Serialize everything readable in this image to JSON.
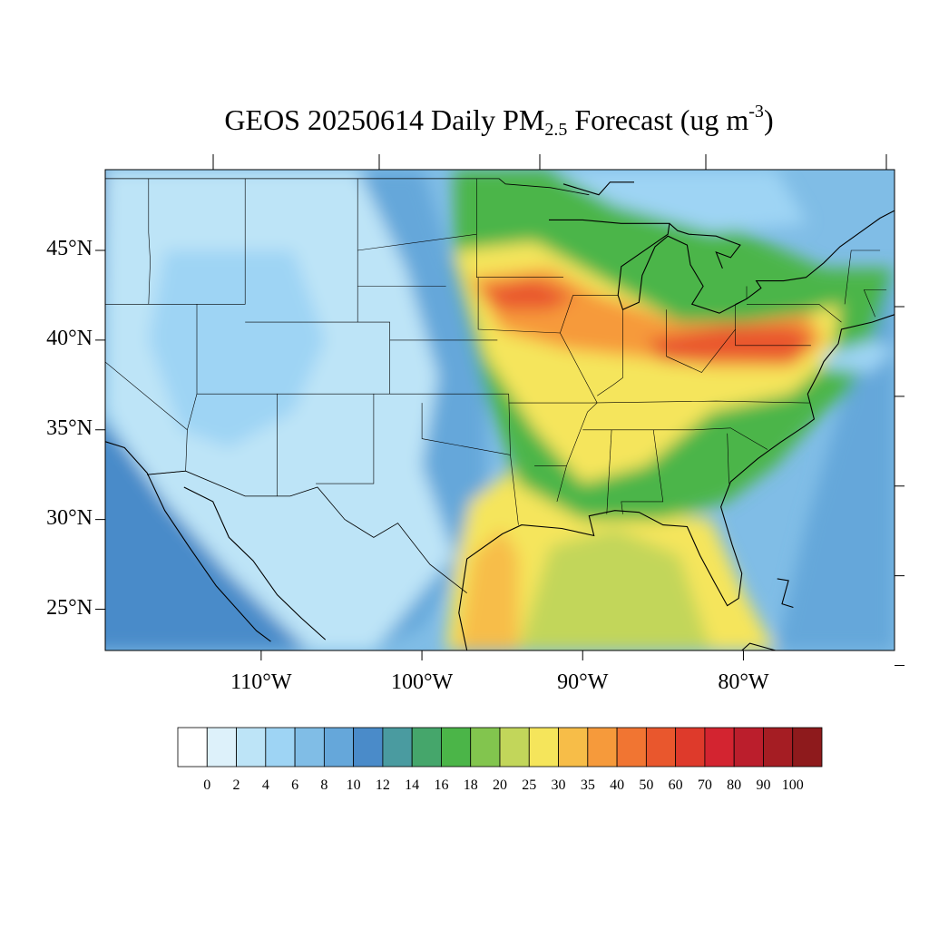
{
  "title": {
    "prefix": "GEOS 20250614 Daily PM",
    "subscript": "2.5",
    "middle": " Forecast (ug m",
    "superscript": "-3",
    "suffix": ")"
  },
  "map": {
    "lat_labels": [
      {
        "text": "45°N",
        "lat": 45
      },
      {
        "text": "40°N",
        "lat": 40
      },
      {
        "text": "35°N",
        "lat": 35
      },
      {
        "text": "30°N",
        "lat": 30
      },
      {
        "text": "25°N",
        "lat": 25
      }
    ],
    "lon_labels": [
      {
        "text": "110°W",
        "lon": -110
      },
      {
        "text": "100°W",
        "lon": -100
      },
      {
        "text": "90°W",
        "lon": -90
      },
      {
        "text": "80°W",
        "lon": -80
      }
    ],
    "extent": {
      "lon_min": -119.7,
      "lon_max": -70.6,
      "lat_min": 22.7,
      "lat_max": 49.5
    }
  },
  "colorbar": {
    "labels": [
      "0",
      "2",
      "4",
      "6",
      "8",
      "10",
      "12",
      "14",
      "16",
      "18",
      "20",
      "25",
      "30",
      "35",
      "40",
      "50",
      "60",
      "70",
      "80",
      "90",
      "100"
    ],
    "colors": [
      "#ffffff",
      "#ddf1fa",
      "#bde4f7",
      "#9ed4f4",
      "#80bde6",
      "#65a7da",
      "#4a8bc9",
      "#4a9ba0",
      "#45a66b",
      "#4bb548",
      "#82c54e",
      "#c2d65a",
      "#f5e55b",
      "#f7bd48",
      "#f69a3b",
      "#f17532",
      "#e9572d",
      "#de3a2b",
      "#d32430",
      "#bb1e2c",
      "#a51d23",
      "#8e1a1c"
    ]
  },
  "regions": [
    {
      "name": "pacific-ocean",
      "color": "#4a8bc9",
      "lonlat": [
        [
          -119.7,
          49.5
        ],
        [
          -124,
          49.5
        ],
        [
          -124,
          22.7
        ],
        [
          -105,
          22.7
        ],
        [
          -112,
          27
        ],
        [
          -116,
          31
        ],
        [
          -118,
          33.5
        ],
        [
          -120.5,
          36
        ]
      ]
    },
    {
      "name": "west-low",
      "color": "#bde4f7",
      "lonlat": [
        [
          -119.7,
          49.5
        ],
        [
          -104,
          49.5
        ],
        [
          -101,
          44
        ],
        [
          -99,
          38
        ],
        [
          -100,
          33
        ],
        [
          -98,
          28
        ],
        [
          -100,
          26
        ],
        [
          -103,
          22.7
        ],
        [
          -107,
          22.7
        ],
        [
          -112,
          27
        ],
        [
          -116,
          31
        ],
        [
          -118,
          33.5
        ],
        [
          -119.7,
          36
        ]
      ]
    },
    {
      "name": "west-mid",
      "color": "#9ed4f4",
      "lonlat": [
        [
          -116,
          45
        ],
        [
          -108,
          45
        ],
        [
          -106,
          40
        ],
        [
          -108,
          36
        ],
        [
          -112,
          34
        ],
        [
          -115,
          35
        ],
        [
          -117,
          40
        ]
      ]
    },
    {
      "name": "plains-blue",
      "color": "#65a7da",
      "lonlat": [
        [
          -104,
          49.5
        ],
        [
          -100,
          49.5
        ],
        [
          -98,
          44
        ],
        [
          -96,
          37
        ],
        [
          -96,
          31
        ],
        [
          -98,
          27
        ],
        [
          -100,
          24
        ],
        [
          -103,
          22.7
        ],
        [
          -98,
          28
        ],
        [
          -100,
          33
        ],
        [
          -99,
          38
        ],
        [
          -101,
          44
        ]
      ]
    },
    {
      "name": "gulf-yellow",
      "color": "#f5e55b",
      "lonlat": [
        [
          -98.5,
          22.7
        ],
        [
          -78,
          22.7
        ],
        [
          -80,
          26
        ],
        [
          -82,
          30
        ],
        [
          -90,
          31
        ],
        [
          -94,
          33
        ],
        [
          -97,
          31
        ],
        [
          -98,
          27
        ]
      ]
    },
    {
      "name": "texas-orange",
      "color": "#f7bd48",
      "lonlat": [
        [
          -97.8,
          22.7
        ],
        [
          -94,
          22.7
        ],
        [
          -94,
          28
        ],
        [
          -95,
          29.5
        ],
        [
          -96.8,
          28
        ]
      ]
    },
    {
      "name": "gulf-olive",
      "color": "#c2d65a",
      "lonlat": [
        [
          -94,
          22.7
        ],
        [
          -82,
          22.7
        ],
        [
          -84,
          28
        ],
        [
          -88,
          29.5
        ],
        [
          -92,
          28.5
        ]
      ]
    },
    {
      "name": "east-green",
      "color": "#4bb548",
      "lonlat": [
        [
          -98,
          49.5
        ],
        [
          -86,
          49.5
        ],
        [
          -80,
          46
        ],
        [
          -75,
          44
        ],
        [
          -70.6,
          44
        ],
        [
          -70.6,
          39
        ],
        [
          -75,
          36
        ],
        [
          -78,
          33
        ],
        [
          -81,
          31
        ],
        [
          -85,
          30
        ],
        [
          -90,
          30
        ],
        [
          -94,
          32
        ],
        [
          -96,
          37
        ],
        [
          -98,
          44
        ]
      ]
    },
    {
      "name": "midwest-yellow",
      "color": "#f5e55b",
      "lonlat": [
        [
          -98,
          45
        ],
        [
          -93,
          45.5
        ],
        [
          -88,
          43
        ],
        [
          -84,
          41
        ],
        [
          -78,
          41
        ],
        [
          -74,
          42
        ],
        [
          -74.5,
          39
        ],
        [
          -77,
          37
        ],
        [
          -82,
          36
        ],
        [
          -86,
          33
        ],
        [
          -90,
          32
        ],
        [
          -93,
          35
        ],
        [
          -96,
          39
        ]
      ]
    },
    {
      "name": "midwest-orange",
      "color": "#f69a3b",
      "lonlat": [
        [
          -97,
          43.5
        ],
        [
          -92,
          44
        ],
        [
          -89,
          42.5
        ],
        [
          -84,
          41
        ],
        [
          -80,
          41
        ],
        [
          -76,
          41.5
        ],
        [
          -75,
          40
        ],
        [
          -77,
          38.5
        ],
        [
          -82,
          38.5
        ],
        [
          -86,
          39
        ],
        [
          -91,
          39.5
        ],
        [
          -95,
          40.5
        ]
      ]
    },
    {
      "name": "iowa-red",
      "color": "#e9572d",
      "lonlat": [
        [
          -96.5,
          42.8
        ],
        [
          -93,
          43.4
        ],
        [
          -90.5,
          42.5
        ],
        [
          -92,
          41.7
        ],
        [
          -95,
          41.7
        ]
      ]
    },
    {
      "name": "ohio-red",
      "color": "#e9572d",
      "lonlat": [
        [
          -86,
          40
        ],
        [
          -81,
          40.8
        ],
        [
          -77,
          40.8
        ],
        [
          -75.5,
          40
        ],
        [
          -77,
          38.8
        ],
        [
          -81,
          38.9
        ],
        [
          -85,
          38.8
        ]
      ]
    },
    {
      "name": "canada-north-blue",
      "color": "#9ed4f4",
      "lonlat": [
        [
          -92,
          49.5
        ],
        [
          -78,
          49.5
        ],
        [
          -76,
          46.5
        ],
        [
          -82,
          46
        ],
        [
          -88,
          47.5
        ]
      ]
    },
    {
      "name": "atlantic-blue",
      "color": "#65a7da",
      "lonlat": [
        [
          -70.6,
          44
        ],
        [
          -70.6,
          22.7
        ],
        [
          -78,
          22.7
        ],
        [
          -76,
          30
        ],
        [
          -74,
          36
        ],
        [
          -72,
          40
        ]
      ]
    },
    {
      "name": "atlantic-light",
      "color": "#9ed4f4",
      "lonlat": [
        [
          -75,
          39.2
        ],
        [
          -72,
          40
        ],
        [
          -70.6,
          39.5
        ],
        [
          -72,
          38.2
        ],
        [
          -75,
          38.4
        ]
      ]
    }
  ],
  "states": [
    [
      [
        -124.5,
        42
      ],
      [
        -120,
        42
      ],
      [
        -120,
        39
      ],
      [
        -114.6,
        35
      ],
      [
        -114.7,
        32.7
      ],
      [
        -117.1,
        32.5
      ]
    ],
    [
      [
        -120,
        42
      ],
      [
        -111,
        42
      ],
      [
        -111,
        49
      ]
    ],
    [
      [
        -117,
        49
      ],
      [
        -117,
        46
      ],
      [
        -116.9,
        44.4
      ],
      [
        -117,
        42
      ]
    ],
    [
      [
        -114,
        42
      ],
      [
        -114,
        37
      ],
      [
        -114.6,
        35
      ]
    ],
    [
      [
        -114,
        37
      ],
      [
        -109,
        37
      ],
      [
        -109,
        31.3
      ]
    ],
    [
      [
        -111,
        41
      ],
      [
        -102,
        41
      ],
      [
        -102,
        37
      ],
      [
        -109,
        37
      ]
    ],
    [
      [
        -104,
        49
      ],
      [
        -104,
        41
      ]
    ],
    [
      [
        -104,
        45
      ],
      [
        -96.6,
        45.9
      ]
    ],
    [
      [
        -104,
        43
      ],
      [
        -98.5,
        43
      ]
    ],
    [
      [
        -102,
        40
      ],
      [
        -95.3,
        40
      ]
    ],
    [
      [
        -102,
        37
      ],
      [
        -94.6,
        37
      ]
    ],
    [
      [
        -103,
        37
      ],
      [
        -103,
        32
      ],
      [
        -106.6,
        32
      ]
    ],
    [
      [
        -100,
        36.5
      ],
      [
        -100,
        34.5
      ],
      [
        -94.5,
        33.6
      ]
    ],
    [
      [
        -94.6,
        37
      ],
      [
        -94.5,
        33.6
      ],
      [
        -94,
        29.7
      ]
    ],
    [
      [
        -96.6,
        49
      ],
      [
        -96.6,
        43.5
      ],
      [
        -91.2,
        43.5
      ]
    ],
    [
      [
        -96.5,
        43.5
      ],
      [
        -96.5,
        40.6
      ],
      [
        -91.4,
        40.4
      ],
      [
        -90.6,
        42.5
      ]
    ],
    [
      [
        -91.4,
        40.4
      ],
      [
        -89.1,
        36.5
      ],
      [
        -89.7,
        36
      ],
      [
        -91,
        33
      ],
      [
        -91.6,
        31
      ]
    ],
    [
      [
        -94.6,
        36.5
      ],
      [
        -89.5,
        36.5
      ]
    ],
    [
      [
        -93,
        33
      ],
      [
        -91,
        33
      ]
    ],
    [
      [
        -88.2,
        35
      ],
      [
        -88.5,
        30.3
      ]
    ],
    [
      [
        -85.6,
        35
      ],
      [
        -85,
        31
      ],
      [
        -87.6,
        31
      ],
      [
        -87.5,
        30.3
      ]
    ],
    [
      [
        -90.6,
        42.5
      ],
      [
        -87.8,
        42.5
      ]
    ],
    [
      [
        -87.5,
        41.7
      ],
      [
        -87.5,
        37.9
      ],
      [
        -88.1,
        37.5
      ],
      [
        -89.1,
        36.9
      ]
    ],
    [
      [
        -84.8,
        41.7
      ],
      [
        -84.8,
        39.1
      ]
    ],
    [
      [
        -89.5,
        36.5
      ],
      [
        -81.7,
        36.6
      ],
      [
        -75.9,
        36.5
      ]
    ],
    [
      [
        -90,
        35
      ],
      [
        -83.1,
        35
      ],
      [
        -80.8,
        35.1
      ],
      [
        -78.5,
        33.9
      ]
    ],
    [
      [
        -84.8,
        39.1
      ],
      [
        -82.6,
        38.2
      ],
      [
        -80.5,
        40.6
      ],
      [
        -80.5,
        42
      ]
    ],
    [
      [
        -80.5,
        40.6
      ],
      [
        -80.5,
        39.7
      ],
      [
        -75.8,
        39.7
      ]
    ],
    [
      [
        -80.5,
        42
      ],
      [
        -79.8,
        42.3
      ],
      [
        -79.8,
        43
      ]
    ],
    [
      [
        -79.8,
        42
      ],
      [
        -75.3,
        42
      ],
      [
        -73.9,
        41
      ]
    ],
    [
      [
        -73.7,
        42
      ],
      [
        -73.3,
        45
      ],
      [
        -71.5,
        45
      ]
    ],
    [
      [
        -71.8,
        41.3
      ],
      [
        -72.5,
        42.8
      ],
      [
        -71.1,
        42.8
      ]
    ],
    [
      [
        -81,
        34.8
      ],
      [
        -80.9,
        32
      ]
    ]
  ],
  "coast": [
    [
      [
        -124.7,
        48.4
      ],
      [
        -124,
        46.2
      ],
      [
        -124.1,
        43.4
      ],
      [
        -124.4,
        42
      ],
      [
        -124,
        40.2
      ],
      [
        -123.5,
        38.5
      ],
      [
        -122.4,
        37.5
      ],
      [
        -121.9,
        36.6
      ],
      [
        -120.6,
        34.6
      ],
      [
        -118.5,
        34
      ],
      [
        -117.1,
        32.6
      ],
      [
        -116,
        30.5
      ],
      [
        -114.5,
        28.5
      ],
      [
        -112.8,
        26.3
      ],
      [
        -110.3,
        23.8
      ],
      [
        -109.4,
        23.2
      ]
    ],
    [
      [
        -114.8,
        31.8
      ],
      [
        -113,
        31
      ],
      [
        -112,
        29
      ],
      [
        -110.5,
        27.7
      ],
      [
        -109,
        25.8
      ],
      [
        -107.5,
        24.5
      ],
      [
        -106,
        23.3
      ]
    ],
    [
      [
        -97.2,
        22.7
      ],
      [
        -97.7,
        24.8
      ],
      [
        -97.2,
        27.8
      ],
      [
        -95,
        29.2
      ],
      [
        -93.8,
        29.7
      ],
      [
        -91.3,
        29.5
      ],
      [
        -89.3,
        29.1
      ],
      [
        -89.6,
        30.2
      ],
      [
        -88,
        30.5
      ],
      [
        -86.5,
        30.4
      ],
      [
        -85,
        29.7
      ],
      [
        -83.5,
        29.6
      ],
      [
        -82.7,
        28
      ],
      [
        -81.8,
        26.5
      ],
      [
        -81,
        25.2
      ],
      [
        -80.3,
        25.6
      ],
      [
        -80.1,
        27
      ],
      [
        -80.7,
        28.6
      ],
      [
        -81.4,
        30.7
      ],
      [
        -80.8,
        32.1
      ],
      [
        -79.1,
        33.4
      ],
      [
        -77.7,
        34.3
      ],
      [
        -76.2,
        35.2
      ],
      [
        -75.6,
        35.6
      ],
      [
        -76,
        37
      ],
      [
        -75.3,
        38.2
      ],
      [
        -75,
        38.8
      ],
      [
        -74.1,
        39.8
      ],
      [
        -73.9,
        40.6
      ],
      [
        -72,
        41
      ],
      [
        -70,
        41.6
      ],
      [
        -70.6,
        42.6
      ],
      [
        -70.3,
        43.7
      ],
      [
        -68.8,
        44.5
      ],
      [
        -67,
        44.8
      ]
    ],
    [
      [
        -92.1,
        46.7
      ],
      [
        -90,
        46.7
      ],
      [
        -87.6,
        46.5
      ],
      [
        -84.6,
        46.5
      ],
      [
        -84.7,
        45.9
      ],
      [
        -87.6,
        44.1
      ],
      [
        -87.8,
        42.5
      ],
      [
        -87.5,
        41.7
      ],
      [
        -86.5,
        42.1
      ],
      [
        -86.3,
        43.6
      ],
      [
        -85.5,
        45.2
      ],
      [
        -84.7,
        45.8
      ],
      [
        -83.5,
        45.3
      ],
      [
        -83.3,
        44.2
      ],
      [
        -82.5,
        43
      ],
      [
        -83.2,
        42
      ],
      [
        -81.5,
        41.5
      ],
      [
        -79.8,
        42.3
      ],
      [
        -78.9,
        42.9
      ],
      [
        -79.2,
        43.3
      ],
      [
        -77.5,
        43.3
      ],
      [
        -76.1,
        43.5
      ],
      [
        -75,
        44.3
      ],
      [
        -74,
        45.2
      ],
      [
        -71.5,
        46.8
      ],
      [
        -70,
        47.5
      ],
      [
        -67,
        48.9
      ]
    ],
    [
      [
        -84.6,
        46.5
      ],
      [
        -84.1,
        46.1
      ],
      [
        -83.4,
        45.9
      ],
      [
        -81.7,
        45.8
      ],
      [
        -80.2,
        45.3
      ],
      [
        -80.8,
        44.6
      ],
      [
        -81.7,
        44.9
      ],
      [
        -81.3,
        44
      ]
    ],
    [
      [
        -80.1,
        22.7
      ],
      [
        -79.6,
        23.1
      ],
      [
        -78,
        22.7
      ]
    ],
    [
      [
        -77.9,
        26.7
      ],
      [
        -77.2,
        26.6
      ],
      [
        -77.6,
        25.3
      ],
      [
        -76.9,
        25.1
      ]
    ],
    [
      [
        -91.2,
        48.7
      ],
      [
        -89,
        48.1
      ],
      [
        -88.3,
        48.8
      ],
      [
        -86.8,
        48.8
      ]
    ]
  ],
  "canada_border": [
    [
      -123.2,
      49
    ],
    [
      -95.2,
      49
    ],
    [
      -94.8,
      48.7
    ],
    [
      -92,
      48.5
    ],
    [
      -89.6,
      48.1
    ]
  ],
  "mexico_border": [
    [
      -117.1,
      32.5
    ],
    [
      -114.7,
      32.7
    ],
    [
      -111,
      31.3
    ],
    [
      -108.2,
      31.3
    ],
    [
      -106.5,
      31.8
    ],
    [
      -104.8,
      30
    ],
    [
      -103,
      29
    ],
    [
      -101.5,
      29.8
    ],
    [
      -99.5,
      27.5
    ],
    [
      -97.2,
      25.9
    ]
  ]
}
